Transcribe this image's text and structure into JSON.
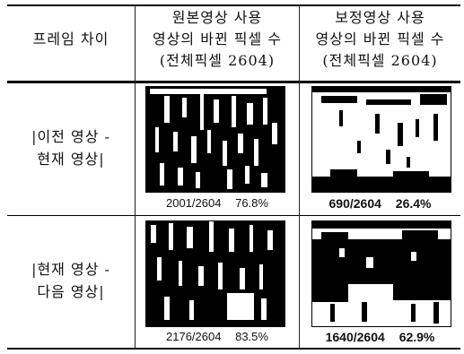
{
  "header": {
    "col1": "프레임 차이",
    "col2": [
      "원본영상 사용",
      "영상의 바뀐 픽셀 수",
      "(전체픽셀 2604)"
    ],
    "col3": [
      "보정영상 사용",
      "영상의 바뀐 픽셀 수",
      "(전체픽셀 2604)"
    ]
  },
  "rows": [
    {
      "label": [
        "|이전 영상 -",
        "현재 영상|"
      ],
      "original": {
        "count": "2001/2604",
        "percent": "76.8%"
      },
      "corrected": {
        "count": "690/2604",
        "percent": "26.4%"
      }
    },
    {
      "label": [
        "|현재 영상 -",
        "다음 영상|"
      ],
      "original": {
        "count": "2176/2604",
        "percent": "83.5%"
      },
      "corrected": {
        "count": "1640/2604",
        "percent": "62.9%"
      }
    }
  ]
}
